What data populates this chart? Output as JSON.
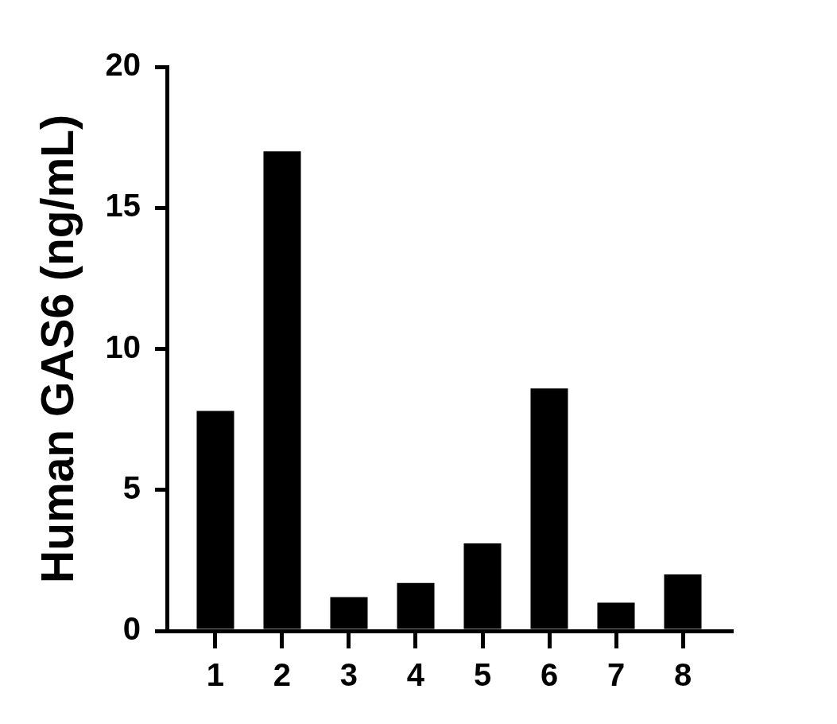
{
  "chart_data": {
    "type": "bar",
    "ylabel": "Human GAS6 (ng/mL)",
    "categories": [
      "1",
      "2",
      "3",
      "4",
      "5",
      "6",
      "7",
      "8"
    ],
    "values": [
      7.8,
      17.0,
      1.2,
      1.7,
      3.1,
      8.6,
      1.0,
      2.0
    ],
    "color": "#000000",
    "ylim": [
      0,
      20
    ],
    "yticks": [
      0,
      5,
      10,
      15,
      20
    ]
  }
}
